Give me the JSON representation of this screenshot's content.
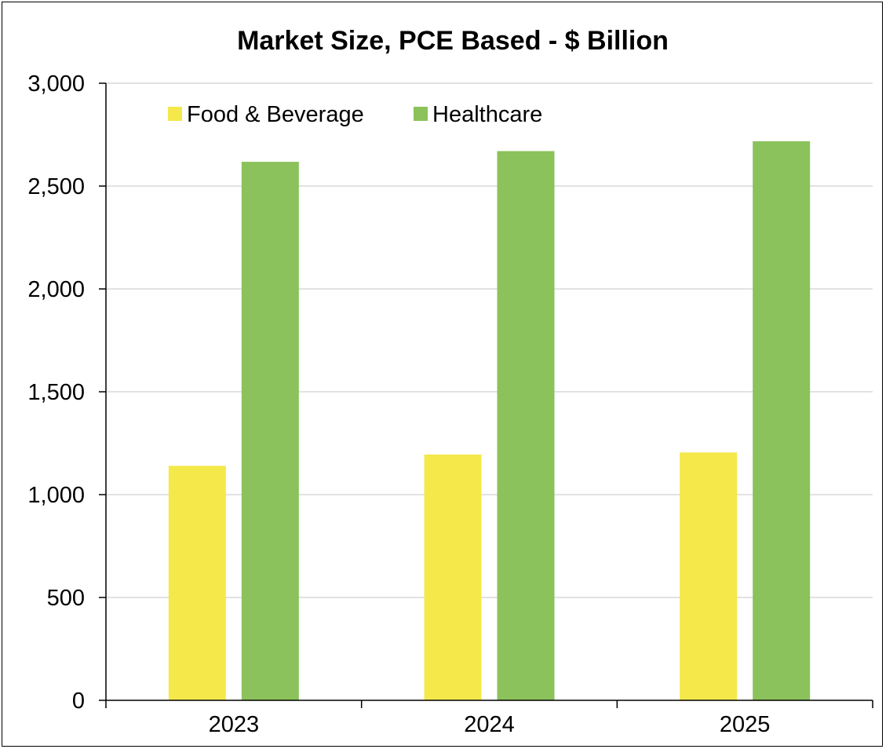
{
  "chart_data": {
    "type": "bar",
    "title": "Market Size, PCE Based - $ Billion",
    "xlabel": "",
    "ylabel": "",
    "categories": [
      "2023",
      "2024",
      "2025"
    ],
    "series": [
      {
        "name": "Food & Beverage",
        "color": "#f5e84a",
        "values": [
          1140,
          1195,
          1205
        ]
      },
      {
        "name": "Healthcare",
        "color": "#8bc25b",
        "values": [
          2618,
          2670,
          2718
        ]
      }
    ],
    "ylim": [
      0,
      3000
    ],
    "yticks": [
      0,
      500,
      1000,
      1500,
      2000,
      2500,
      3000
    ],
    "ytick_labels": [
      "0",
      "500",
      "1,000",
      "1,500",
      "2,000",
      "2,500",
      "3,000"
    ],
    "grid": true,
    "gridline_color": "#d9d9d9",
    "legend_placement": "top-left"
  }
}
